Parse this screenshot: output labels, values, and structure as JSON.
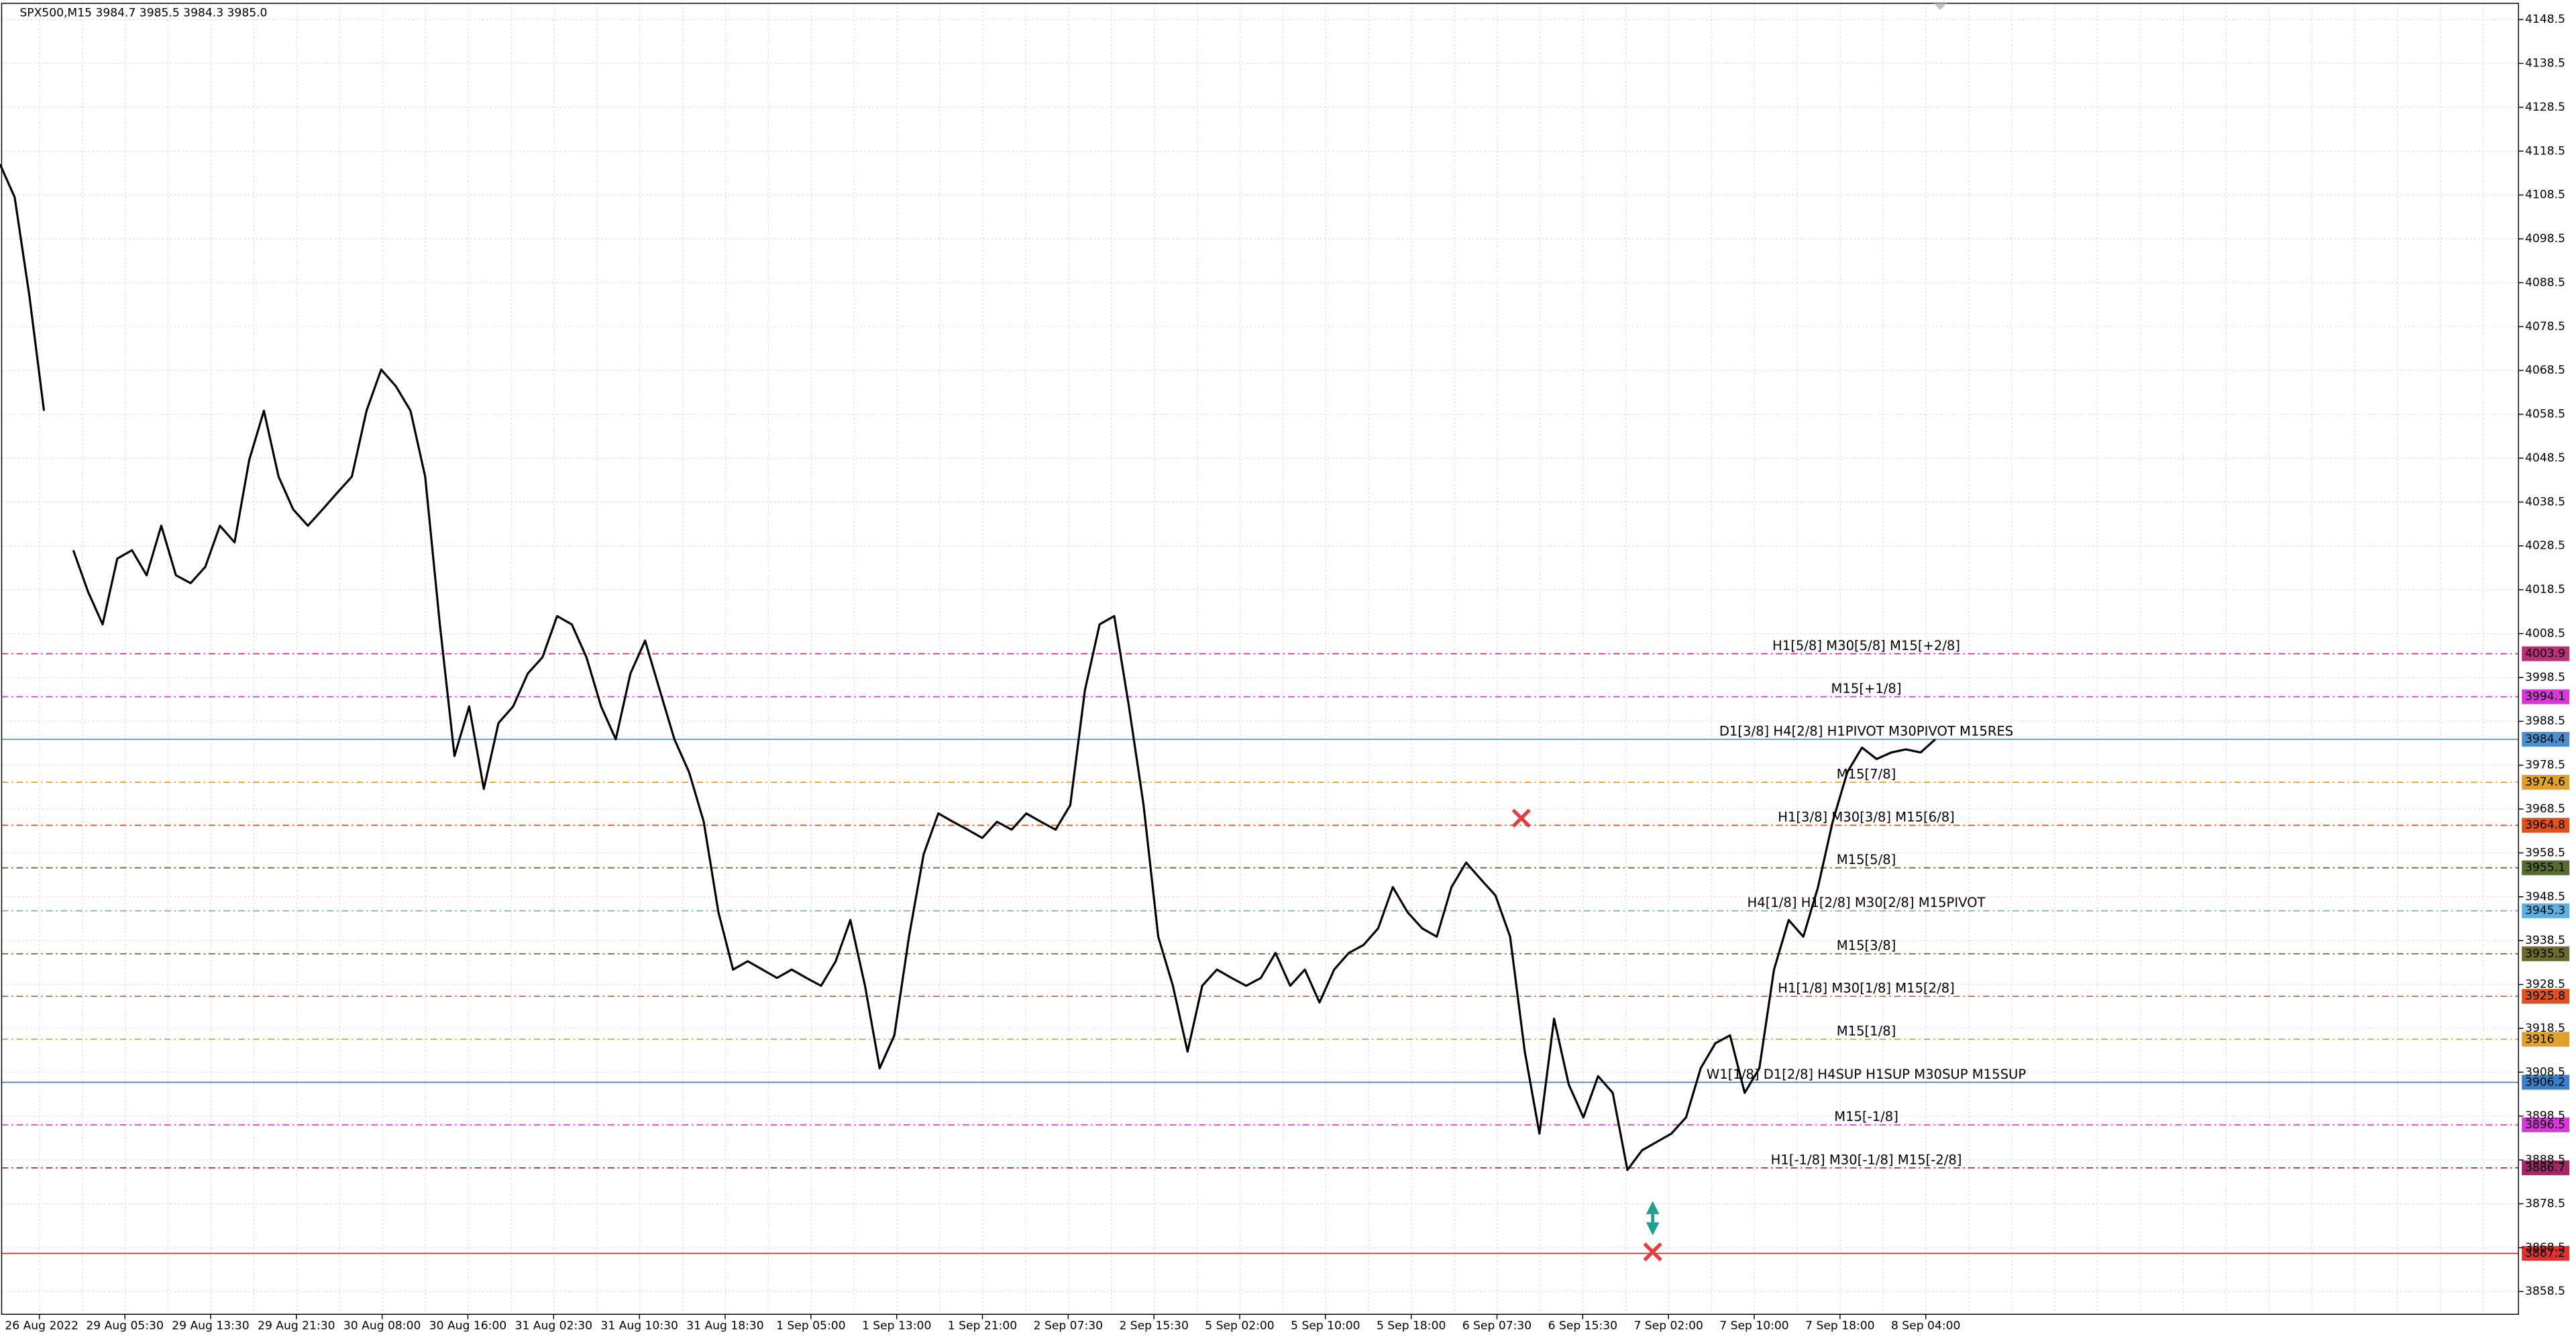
{
  "chart_data": {
    "type": "line",
    "title": "SPX500,M15  3984.7 3985.5 3984.3 3985.0",
    "xtick_labels": [
      "26 Aug 2022",
      "29 Aug 05:30",
      "29 Aug 13:30",
      "29 Aug 21:30",
      "30 Aug 08:00",
      "30 Aug 16:00",
      "31 Aug 02:30",
      "31 Aug 10:30",
      "31 Aug 18:30",
      "1 Sep 05:00",
      "1 Sep 13:00",
      "1 Sep 21:00",
      "2 Sep 07:30",
      "2 Sep 15:30",
      "5 Sep 02:00",
      "5 Sep 10:00",
      "5 Sep 18:00",
      "6 Sep 07:30",
      "6 Sep 15:30",
      "7 Sep 02:00",
      "7 Sep 10:00",
      "7 Sep 18:00",
      "8 Sep 04:00"
    ],
    "ylim": [
      3853.3,
      4152.2
    ],
    "yticks": [
      3858.5,
      3868.5,
      3878.5,
      3888.5,
      3898.5,
      3908.5,
      3918.5,
      3928.5,
      3938.5,
      3948.5,
      3958.5,
      3968.5,
      3978.5,
      3988.5,
      3998.5,
      4008.5,
      4018.5,
      4028.5,
      4038.5,
      4048.5,
      4058.5,
      4068.5,
      4078.5,
      4088.5,
      4098.5,
      4108.5,
      4118.5,
      4128.5,
      4138.5,
      4148.5
    ],
    "grid": true,
    "series": [
      {
        "name": "SPX500",
        "color": "#000000",
        "values": [
          4115.5,
          4108.0,
          4085.6,
          4059.3,
          null,
          4027.5,
          4018.1,
          4010.6,
          4025.6,
          4027.5,
          4021.8,
          4033.1,
          4021.8,
          4020.0,
          4023.7,
          4033.1,
          4029.3,
          4048.1,
          4059.3,
          4044.3,
          4036.8,
          4033.1,
          4036.8,
          4040.6,
          4044.3,
          4059.3,
          4068.7,
          4064.9,
          4059.3,
          4044.3,
          4010.6,
          3980.6,
          3991.9,
          3973.1,
          3988.1,
          3991.9,
          3999.4,
          4003.1,
          4012.5,
          4010.6,
          4003.1,
          3991.9,
          3984.4,
          3999.4,
          4006.9,
          3995.6,
          3984.4,
          3976.9,
          3965.6,
          3945.0,
          3931.9,
          3933.8,
          3931.9,
          3930.0,
          3931.9,
          3930.0,
          3928.2,
          3933.8,
          3943.2,
          3928.2,
          3909.4,
          3916.9,
          3939.4,
          3958.2,
          3967.5,
          3965.6,
          3963.8,
          3961.9,
          3965.6,
          3963.8,
          3967.5,
          3965.6,
          3963.8,
          3969.4,
          3995.6,
          4010.6,
          4012.5,
          3991.9,
          3969.4,
          3939.4,
          3928.2,
          3913.2,
          3928.2,
          3931.9,
          3930.0,
          3928.2,
          3930.0,
          3935.7,
          3928.2,
          3931.9,
          3924.4,
          3931.9,
          3935.7,
          3937.5,
          3941.3,
          3950.7,
          3945.0,
          3941.3,
          3939.4,
          3950.7,
          3956.3,
          3952.5,
          3948.8,
          3939.4,
          3913.2,
          3894.5,
          3920.7,
          3905.7,
          3898.2,
          3907.6,
          3903.8,
          3886.2,
          3890.7,
          3892.6,
          3894.5,
          3898.2,
          3909.4,
          3915.1,
          3916.9,
          3903.8,
          3909.4,
          3931.9,
          3943.2,
          3939.4,
          3950.7,
          3965.6,
          3976.9,
          3982.5,
          3979.9,
          3981.4,
          3982.1,
          3981.4,
          3984.4
        ]
      }
    ],
    "levels": [
      {
        "value": 4003.9,
        "label": "H1[5/8] M30[5/8] M15[+2/8]",
        "color": "#b8307a"
      },
      {
        "value": 3994.1,
        "label": "M15[+1/8]",
        "color": "#d838d8"
      },
      {
        "value": 3984.4,
        "label": "D1[3/8] H4[2/8] H1PIVOT M30PIVOT M15RES",
        "color": "#4a90d0"
      },
      {
        "value": 3974.6,
        "label": "M15[7/8]",
        "color": "#e0a030"
      },
      {
        "value": 3964.8,
        "label": "H1[3/8] M30[3/8] M15[6/8]",
        "color": "#e05020"
      },
      {
        "value": 3955.1,
        "label": "M15[5/8]",
        "color": "#556b2f"
      },
      {
        "value": 3945.3,
        "label": "H4[1/8] H1[2/8] M30[2/8] M15PIVOT",
        "color": "#5ab0e0"
      },
      {
        "value": 3935.5,
        "label": "M15[3/8]",
        "color": "#6b6b2f"
      },
      {
        "value": 3925.8,
        "label": "H1[1/8] M30[1/8] M15[2/8]",
        "color": "#e05020"
      },
      {
        "value": 3916.0,
        "label": "M15[1/8]",
        "color": "#e0a030"
      },
      {
        "value": 3906.2,
        "label": "W1[1/8] D1[2/8] H4SUP H1SUP M30SUP M15SUP",
        "color": "#3a80c8"
      },
      {
        "value": 3896.5,
        "label": "M15[-1/8]",
        "color": "#d838d8"
      },
      {
        "value": 3886.7,
        "label": "H1[-1/8] M30[-1/8] M15[-2/8]",
        "color": "#a02868"
      },
      {
        "value": 3867.2,
        "color": "#e03030"
      }
    ]
  }
}
